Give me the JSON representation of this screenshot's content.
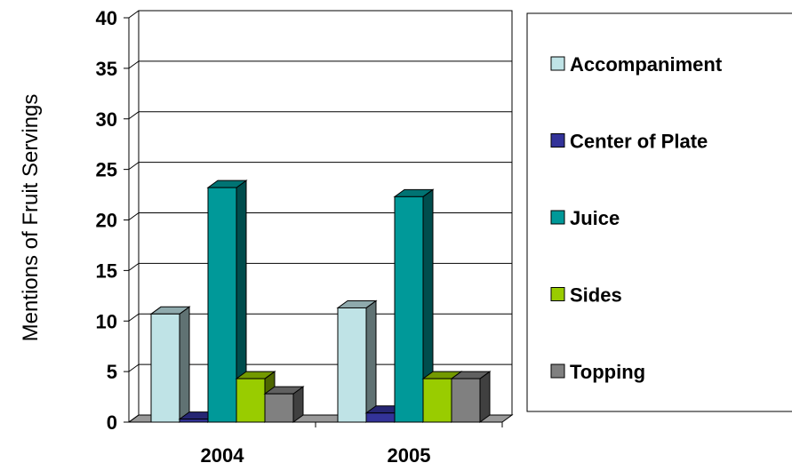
{
  "chart_data": {
    "type": "bar3d",
    "y_label": "Mentions of Fruit Servings",
    "categories": [
      "2004",
      "2005"
    ],
    "series": [
      {
        "name": "Accompaniment",
        "color": "#bfe3e6",
        "values": [
          10.7,
          11.3
        ]
      },
      {
        "name": "Center of Plate",
        "color": "#333399",
        "values": [
          0.3,
          0.9
        ]
      },
      {
        "name": "Juice",
        "color": "#009999",
        "values": [
          23.2,
          22.3
        ]
      },
      {
        "name": "Sides",
        "color": "#99cc00",
        "values": [
          4.3,
          4.3
        ]
      },
      {
        "name": "Topping",
        "color": "#808080",
        "values": [
          2.8,
          4.3
        ]
      }
    ],
    "ylim": [
      0,
      40
    ],
    "yticks": [
      0,
      5,
      10,
      15,
      20,
      25,
      30,
      35,
      40
    ],
    "grid": true,
    "legend": "right"
  }
}
